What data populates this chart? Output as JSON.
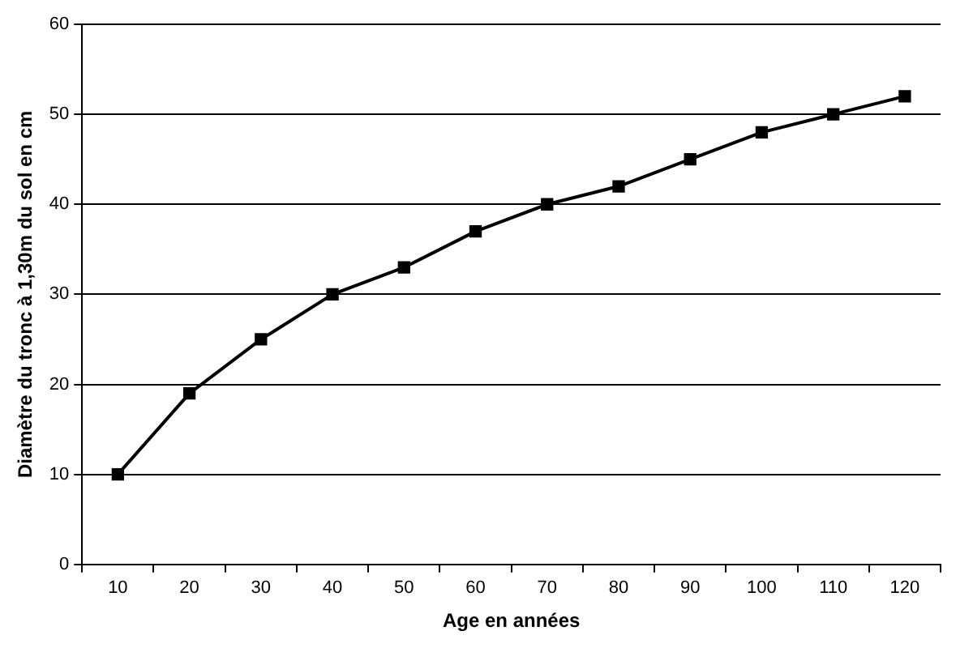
{
  "chart_data": {
    "type": "line",
    "xlabel": "Age en années",
    "ylabel": "Diamètre du tronc à 1,30m du sol en cm",
    "categories": [
      "10",
      "20",
      "30",
      "40",
      "50",
      "60",
      "70",
      "80",
      "90",
      "100",
      "110",
      "120"
    ],
    "series": [
      {
        "color": "#000000",
        "values": [
          10,
          19,
          25,
          30,
          33,
          37,
          40,
          42,
          45,
          48,
          50,
          52
        ]
      }
    ],
    "ylim": [
      0,
      60
    ],
    "yticks": [
      0,
      10,
      20,
      30,
      40,
      50,
      60
    ],
    "grid": "y",
    "legend": false,
    "marker": "square",
    "line_style": "solid"
  }
}
